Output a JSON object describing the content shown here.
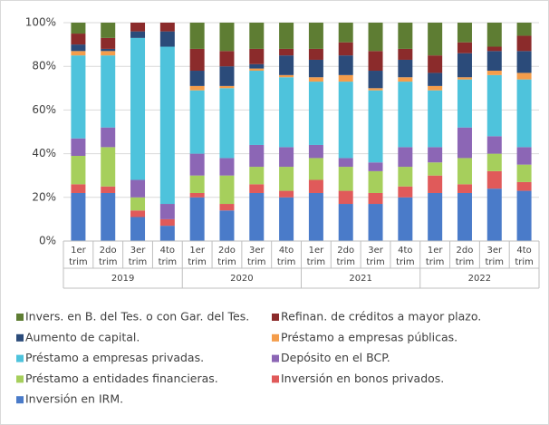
{
  "chart_data": {
    "type": "stacked_bar",
    "ylim": [
      0,
      100
    ],
    "yticks": [
      {
        "value": 0,
        "label": "0%"
      },
      {
        "value": 20,
        "label": "20%"
      },
      {
        "value": 40,
        "label": "40%"
      },
      {
        "value": 60,
        "label": "60%"
      },
      {
        "value": 80,
        "label": "80%"
      },
      {
        "value": 100,
        "label": "100%"
      }
    ],
    "groups": [
      {
        "name": "2019",
        "categories": [
          [
            "1er",
            "trim"
          ],
          [
            "2do",
            "trim"
          ],
          [
            "3er",
            "trim"
          ],
          [
            "4to",
            "trim"
          ]
        ]
      },
      {
        "name": "2020",
        "categories": [
          [
            "1er",
            "trim"
          ],
          [
            "2do",
            "trim"
          ],
          [
            "3er",
            "trim"
          ],
          [
            "4to",
            "trim"
          ]
        ]
      },
      {
        "name": "2021",
        "categories": [
          [
            "1er",
            "trim"
          ],
          [
            "2do",
            "trim"
          ],
          [
            "3er",
            "trim"
          ],
          [
            "4to",
            "trim"
          ]
        ]
      },
      {
        "name": "2022",
        "categories": [
          [
            "1er",
            "trim"
          ],
          [
            "2do",
            "trim"
          ],
          [
            "3er",
            "trim"
          ],
          [
            "4to",
            "trim"
          ]
        ]
      }
    ],
    "series": [
      {
        "name": "Inversión en IRM.",
        "color": "#4a7bc9",
        "values": [
          22,
          22,
          11,
          7,
          20,
          14,
          22,
          20,
          22,
          17,
          17,
          20,
          22,
          22,
          24,
          23
        ]
      },
      {
        "name": "Inversión en bonos privados.",
        "color": "#e05a5a",
        "values": [
          4,
          3,
          3,
          3,
          2,
          3,
          4,
          3,
          6,
          6,
          5,
          5,
          8,
          4,
          8,
          4
        ]
      },
      {
        "name": "Préstamo a entidades financieras.",
        "color": "#a6cf5c",
        "values": [
          13,
          18,
          6,
          0,
          8,
          13,
          8,
          11,
          10,
          11,
          10,
          9,
          6,
          12,
          8,
          8
        ]
      },
      {
        "name": "Depósito en el BCP.",
        "color": "#8c66b5",
        "values": [
          8,
          9,
          8,
          7,
          10,
          8,
          10,
          9,
          6,
          4,
          4,
          9,
          7,
          14,
          8,
          8
        ]
      },
      {
        "name": "Préstamo a empresas privadas.",
        "color": "#4ec3dc",
        "values": [
          38,
          33,
          65,
          72,
          29,
          32,
          34,
          32,
          29,
          35,
          33,
          30,
          26,
          22,
          28,
          31
        ]
      },
      {
        "name": "Préstamo a empresas públicas.",
        "color": "#f49d4b",
        "values": [
          2,
          2,
          0,
          0,
          2,
          1,
          1,
          1,
          2,
          3,
          1,
          2,
          2,
          1,
          2,
          3
        ]
      },
      {
        "name": "Aumento de capital.",
        "color": "#2b4b7a",
        "values": [
          3,
          1,
          3,
          7,
          7,
          9,
          2,
          9,
          8,
          9,
          8,
          8,
          6,
          11,
          9,
          10
        ]
      },
      {
        "name": "Refinan. de créditos a mayor plazo.",
        "color": "#8b2b2b",
        "values": [
          5,
          5,
          4,
          4,
          10,
          7,
          7,
          3,
          5,
          6,
          9,
          5,
          8,
          5,
          2,
          7
        ]
      },
      {
        "name": "Invers. en B. del Tes. o con Gar. del Tes.",
        "color": "#5e7d33",
        "values": [
          5,
          7,
          0,
          0,
          12,
          13,
          12,
          12,
          12,
          9,
          13,
          12,
          15,
          9,
          11,
          6
        ]
      }
    ]
  }
}
